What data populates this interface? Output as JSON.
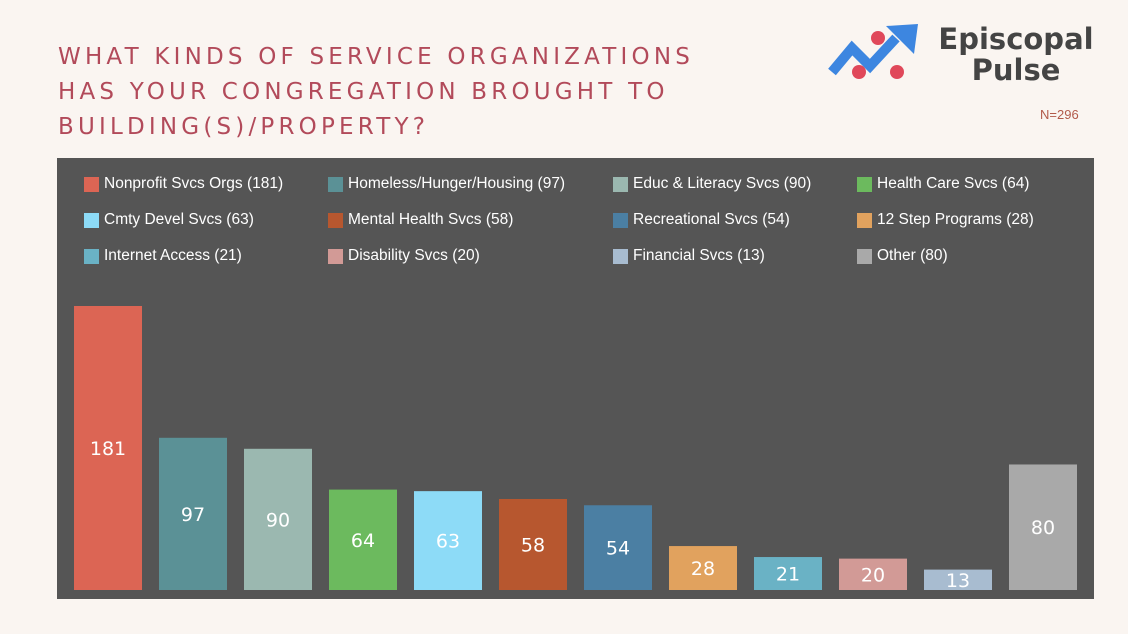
{
  "title_lines": [
    "WHAT KINDS OF SERVICE ORGANIZATIONS",
    "HAS YOUR CONGREGATION BROUGHT TO",
    "BUILDING(S)/PROPERTY?"
  ],
  "logo": {
    "line1": "Episcopal",
    "line2": "Pulse",
    "icon": "trend-up-arrow-icon"
  },
  "sample_size": "N=296",
  "chart_data": {
    "type": "bar",
    "categories": [
      "Nonprofit Svcs Orgs",
      "Homeless/Hunger/Housing",
      "Educ & Literacy Svcs",
      "Health Care Svcs",
      "Cmty Devel Svcs",
      "Mental Health Svcs",
      "Recreational Svcs",
      "12 Step Programs",
      "Internet Access",
      "Disability Svcs",
      "Financial Svcs",
      "Other"
    ],
    "values": [
      181,
      97,
      90,
      64,
      63,
      58,
      54,
      28,
      21,
      20,
      13,
      80
    ],
    "legend": [
      "Nonprofit Svcs Orgs (181)",
      "Homeless/Hunger/Housing (97)",
      "Educ & Literacy Svcs (90)",
      "Health Care Svcs (64)",
      "Cmty Devel Svcs (63)",
      "Mental Health Svcs (58)",
      "Recreational Svcs (54)",
      "12 Step Programs (28)",
      "Internet Access (21)",
      "Disability Svcs (20)",
      "Financial Svcs (13)",
      "Other (80)"
    ],
    "colors": [
      "#dc6554",
      "#5b9196",
      "#9bb8b0",
      "#6cba5e",
      "#8ddbf7",
      "#b7572f",
      "#4b7fa3",
      "#e1a25e",
      "#6ab2c5",
      "#d29a96",
      "#a8bcd0",
      "#a9a9a9"
    ],
    "legend_position": "top",
    "data_labels": true,
    "grid": false,
    "ylim": [
      0,
      181
    ]
  }
}
